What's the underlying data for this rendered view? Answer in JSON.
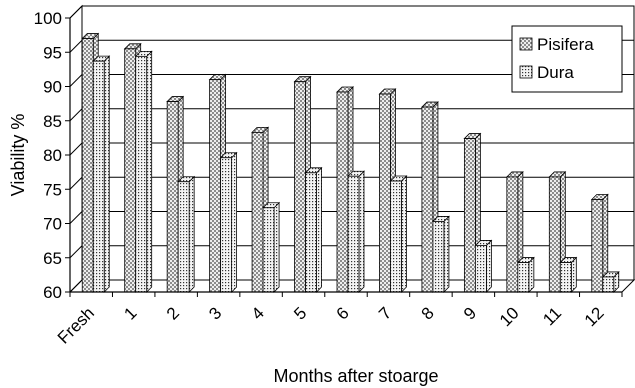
{
  "chart_data": {
    "type": "bar",
    "xlabel": "Months after stoarge",
    "ylabel": "Viability %",
    "ylim": [
      60,
      100
    ],
    "yticks": [
      60,
      65,
      70,
      75,
      80,
      85,
      90,
      95,
      100
    ],
    "categories": [
      "Fresh",
      "1",
      "2",
      "3",
      "4",
      "5",
      "6",
      "7",
      "8",
      "9",
      "10",
      "11",
      "12"
    ],
    "series": [
      {
        "name": "Pisifera",
        "pattern": "checker",
        "values": [
          97,
          95.5,
          87.8,
          91,
          83.3,
          90.7,
          89.2,
          88.9,
          87,
          82.4,
          76.8,
          76.8,
          73.5
        ]
      },
      {
        "name": "Dura",
        "pattern": "dots",
        "values": [
          93.7,
          94.4,
          76.1,
          79.6,
          72.3,
          77.4,
          76.9,
          76.2,
          70.3,
          66.8,
          64.3,
          64.3,
          62.2
        ]
      }
    ],
    "grid": true,
    "legend_position": "top-right",
    "chart_style": "3d-bars",
    "colors": {
      "checker_dark": "#8c8c8c",
      "checker_light": "#eeeeee",
      "dot_color": "#333333",
      "dot_bg": "#f4f4f4",
      "axis": "#000000",
      "grid": "#000000"
    }
  }
}
